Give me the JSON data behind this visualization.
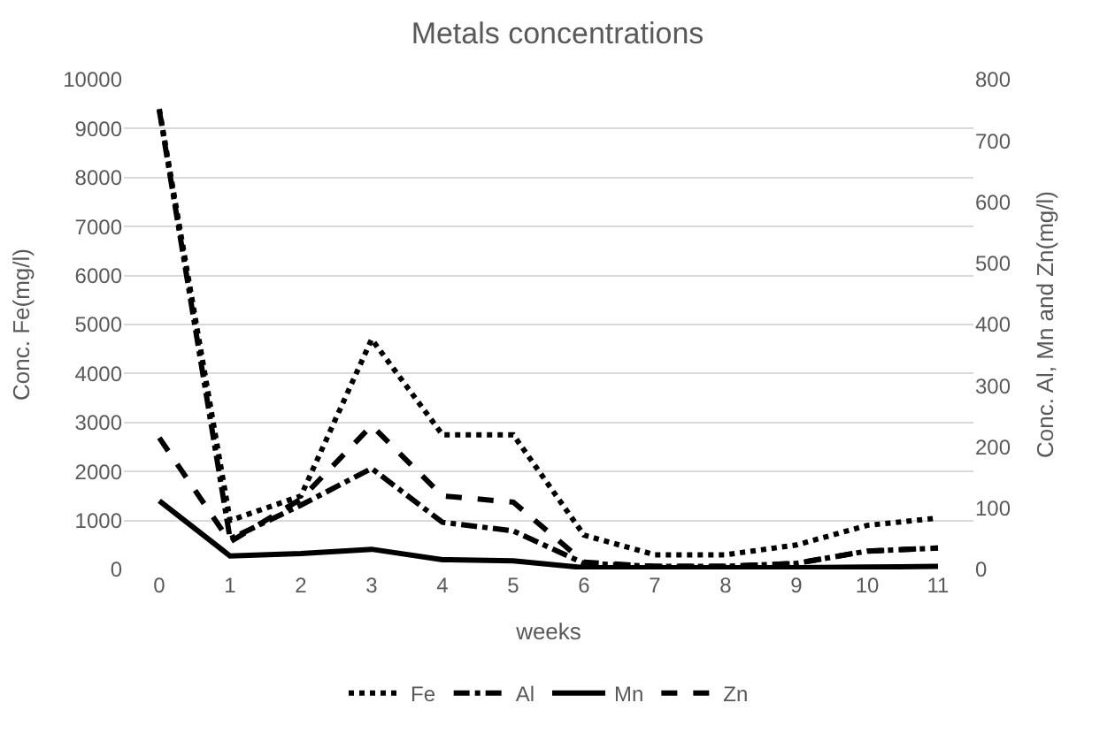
{
  "chart_data": {
    "type": "line",
    "title": "Metals concentrations",
    "xlabel": "weeks",
    "ylabel": "Conc. Fe(mg/l)",
    "y2label": "Conc. Al, Mn and Zn(mg/l)",
    "categories": [
      "0",
      "1",
      "2",
      "3",
      "4",
      "5",
      "6",
      "7",
      "8",
      "9",
      "10",
      "11"
    ],
    "series": [
      {
        "name": "Fe",
        "color": "#000000",
        "line_style": "dotted",
        "values": [
          9400,
          1000,
          1500,
          4700,
          2750,
          2750,
          700,
          300,
          300,
          500,
          900,
          1050
        ]
      },
      {
        "name": "Al",
        "color": "#000000",
        "line_style": "dashdot",
        "axis": "y2",
        "values": [
          750,
          50,
          105,
          165,
          77,
          63,
          10,
          5,
          5,
          10,
          30,
          35
        ]
      },
      {
        "name": "Mn",
        "color": "#000000",
        "line_style": "solid",
        "axis": "y2",
        "values": [
          112,
          22,
          26,
          33,
          16,
          14,
          3,
          3,
          3,
          3,
          4,
          5
        ]
      },
      {
        "name": "Zn",
        "color": "#000000",
        "line_style": "dashed",
        "axis": "y2",
        "values": [
          215,
          45,
          115,
          235,
          120,
          110,
          12,
          5,
          5,
          10,
          30,
          35
        ]
      }
    ],
    "ylim": [
      0,
      10000
    ],
    "yticks": [
      0,
      1000,
      2000,
      3000,
      4000,
      5000,
      6000,
      7000,
      8000,
      9000,
      10000
    ],
    "y2lim": [
      0,
      800
    ],
    "y2ticks": [
      0,
      100,
      200,
      300,
      400,
      500,
      600,
      700,
      800
    ],
    "grid": "y",
    "legend": "bottom",
    "marker": "none"
  }
}
